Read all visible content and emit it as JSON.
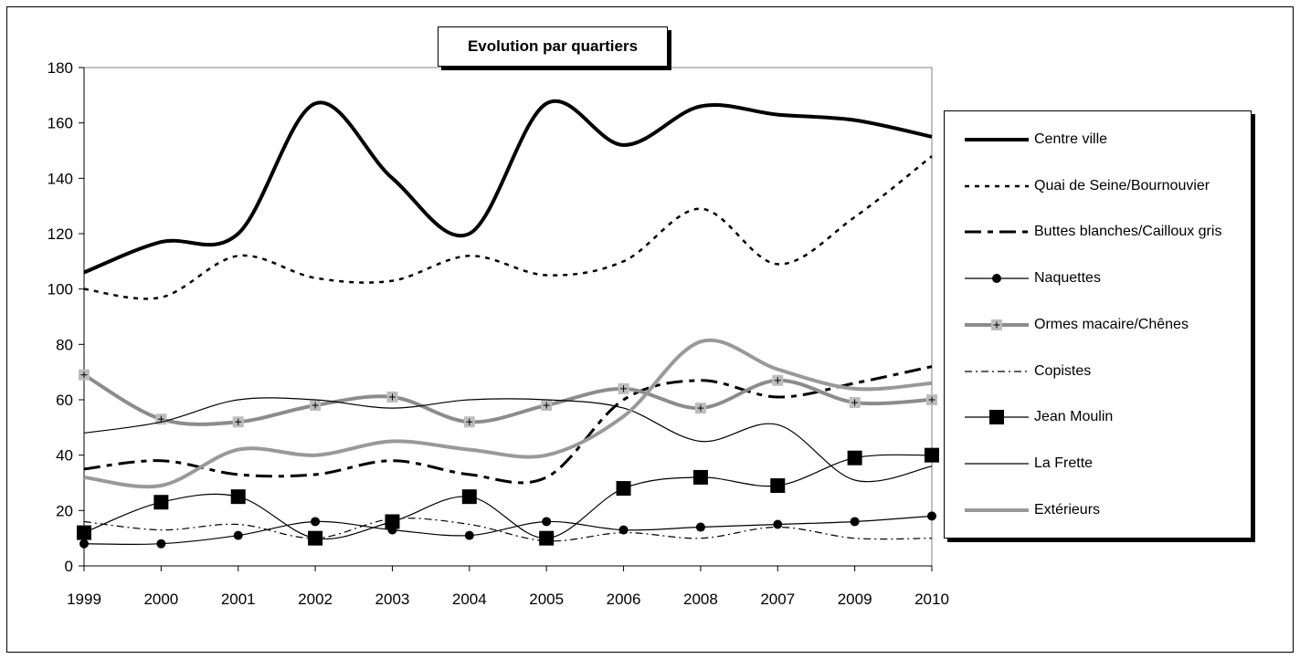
{
  "chart_data": {
    "type": "line",
    "title": "Evolution par quartiers",
    "xlabel": "",
    "ylabel": "",
    "ylim": [
      0,
      180
    ],
    "yticks": [
      0,
      20,
      40,
      60,
      80,
      100,
      120,
      140,
      160,
      180
    ],
    "categories": [
      "1999",
      "2000",
      "2001",
      "2002",
      "2003",
      "2004",
      "2005",
      "2006",
      "2008",
      "2007",
      "2009",
      "2010"
    ],
    "grid": false,
    "legend_position": "right",
    "series": [
      {
        "name": "Centre ville",
        "values": [
          106,
          117,
          120,
          167,
          140,
          120,
          167,
          152,
          166,
          163,
          161,
          155
        ],
        "color": "#000000",
        "style": "thick-solid"
      },
      {
        "name": "Quai de Seine/Bournouvier",
        "values": [
          100,
          97,
          112,
          104,
          103,
          112,
          105,
          110,
          129,
          109,
          126,
          148
        ],
        "color": "#000000",
        "style": "dotted"
      },
      {
        "name": "Buttes blanches/Cailloux gris",
        "values": [
          35,
          38,
          33,
          33,
          38,
          33,
          32,
          60,
          67,
          61,
          66,
          72
        ],
        "color": "#000000",
        "style": "dash-dot-thick"
      },
      {
        "name": "Naquettes",
        "values": [
          8,
          8,
          11,
          16,
          13,
          11,
          16,
          13,
          14,
          15,
          16,
          18
        ],
        "color": "#000000",
        "style": "circle"
      },
      {
        "name": "Ormes macaire/Chênes",
        "values": [
          69,
          53,
          52,
          58,
          61,
          52,
          58,
          64,
          57,
          67,
          59,
          60
        ],
        "color": "#8c8c8c",
        "style": "grey-plus"
      },
      {
        "name": "Copistes",
        "values": [
          16,
          13,
          15,
          10,
          17,
          15,
          9,
          12,
          10,
          14,
          10,
          10
        ],
        "color": "#000000",
        "style": "dash-dot-thin"
      },
      {
        "name": "Jean Moulin",
        "values": [
          12,
          23,
          25,
          10,
          16,
          25,
          10,
          28,
          32,
          29,
          39,
          40
        ],
        "color": "#000000",
        "style": "square"
      },
      {
        "name": "La Frette",
        "values": [
          48,
          52,
          60,
          60,
          57,
          60,
          60,
          57,
          45,
          51,
          31,
          36
        ],
        "color": "#000000",
        "style": "thin-solid"
      },
      {
        "name": "Extérieurs",
        "values": [
          32,
          29,
          42,
          40,
          45,
          42,
          40,
          54,
          81,
          71,
          64,
          66
        ],
        "color": "#999999",
        "style": "grey-thick"
      }
    ]
  }
}
